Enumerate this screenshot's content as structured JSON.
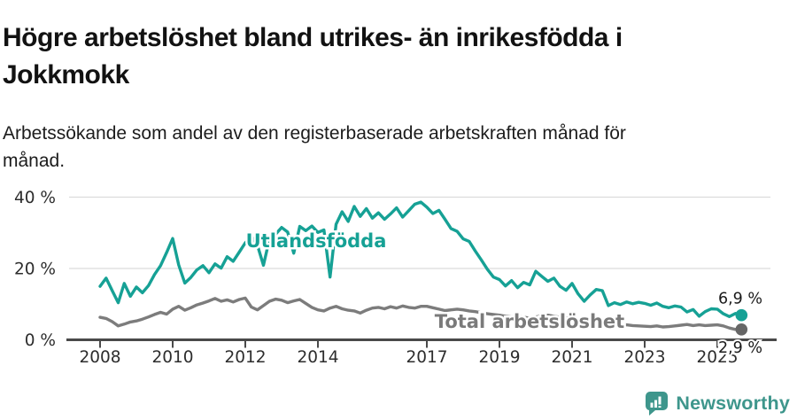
{
  "header": {
    "title": "Högre arbetslöshet bland utrikes- än inrikesfödda i Jokkmokk",
    "subtitle": "Arbetssökande som andel av den registerbaserade arbetskraften månad för månad."
  },
  "footer": {
    "brand": "Newsworthy",
    "icon": "bar-chart-speech-bubble-icon"
  },
  "colors": {
    "teal": "#16A195",
    "gray": "#7C7C7C",
    "gray_dot": "#666666",
    "gray_label": "#7A7A7A",
    "axis": "#4A4A4A",
    "grid": "#DCDCDC",
    "tick_text": "#2D2D2D",
    "value_text": "#1B1B1B",
    "brand": "#3E968C"
  },
  "chart_data": {
    "type": "line",
    "title": "Högre arbetslöshet bland utrikes- än inrikesfödda i Jokkmokk",
    "subtitle": "Arbetssökande som andel av den registerbaserade arbetskraften månad för månad.",
    "x_unit": "year (monthly share of registered labour force, sampled every 2 months)",
    "x_start_year": 2008,
    "x_end_year": 2025.67,
    "points_per_year": 6,
    "xlim": [
      2007.1,
      2026.6
    ],
    "ylim": [
      0,
      42
    ],
    "grid": true,
    "legend": "inline-labels",
    "xticks": [
      2008,
      2010,
      2012,
      2014,
      2017,
      2019,
      2021,
      2023,
      2025
    ],
    "ytick_values": [
      0,
      20,
      40
    ],
    "ytick_labels": [
      "0 %",
      "20 %",
      "40 %"
    ],
    "series": [
      {
        "name": "Utlandsfödda",
        "color": "#16A195",
        "end_label": "6,9 %",
        "values": [
          15.0,
          17.3,
          13.8,
          10.4,
          15.8,
          12.2,
          14.8,
          13.2,
          15.2,
          18.3,
          20.8,
          24.5,
          28.4,
          21.0,
          15.9,
          17.5,
          19.6,
          20.8,
          18.8,
          21.3,
          20.1,
          23.3,
          22.0,
          24.6,
          27.2,
          29.0,
          26.5,
          20.9,
          28.3,
          29.6,
          31.5,
          30.2,
          24.3,
          31.8,
          30.6,
          31.9,
          30.1,
          30.8,
          17.6,
          32.4,
          35.9,
          33.2,
          37.4,
          34.6,
          36.8,
          34.1,
          35.6,
          33.8,
          35.3,
          37.0,
          34.4,
          36.2,
          38.0,
          38.6,
          37.2,
          35.4,
          36.3,
          33.8,
          31.2,
          30.4,
          28.3,
          27.6,
          24.9,
          22.4,
          19.8,
          17.6,
          16.9,
          15.1,
          16.6,
          14.6,
          16.1,
          15.4,
          19.2,
          17.8,
          16.4,
          17.3,
          15.0,
          13.9,
          15.8,
          12.9,
          10.8,
          12.6,
          14.1,
          13.8,
          9.6,
          10.4,
          9.9,
          10.6,
          10.1,
          10.5,
          10.2,
          9.7,
          10.3,
          9.4,
          9.0,
          9.5,
          9.2,
          7.8,
          8.5,
          6.6,
          7.9,
          8.7,
          8.6,
          7.3,
          6.5,
          7.4,
          6.9
        ]
      },
      {
        "name": "Total arbetslöshet",
        "color": "#7C7C7C",
        "label_color": "#7A7A7A",
        "dot_color": "#666666",
        "end_label": "2,9 %",
        "values": [
          6.3,
          6.0,
          5.1,
          3.9,
          4.4,
          5.0,
          5.3,
          5.8,
          6.4,
          7.1,
          7.7,
          7.2,
          8.6,
          9.4,
          8.3,
          9.0,
          9.8,
          10.3,
          10.9,
          11.6,
          10.8,
          11.2,
          10.6,
          11.3,
          11.7,
          9.2,
          8.4,
          9.6,
          10.8,
          11.4,
          11.1,
          10.4,
          10.9,
          11.3,
          10.2,
          9.1,
          8.4,
          8.1,
          8.9,
          9.4,
          8.7,
          8.3,
          8.1,
          7.5,
          8.3,
          8.9,
          9.1,
          8.7,
          9.3,
          8.9,
          9.5,
          9.1,
          8.9,
          9.4,
          9.4,
          9.0,
          8.6,
          8.2,
          8.4,
          8.6,
          8.4,
          8.1,
          7.9,
          7.6,
          7.3,
          7.1,
          6.9,
          6.6,
          6.4,
          6.6,
          6.3,
          6.1,
          6.4,
          6.7,
          6.9,
          6.6,
          6.3,
          6.1,
          5.9,
          5.6,
          5.4,
          5.3,
          5.1,
          5.0,
          4.6,
          4.3,
          4.1,
          4.2,
          4.0,
          3.9,
          3.8,
          3.7,
          3.9,
          3.6,
          3.7,
          3.9,
          4.1,
          4.3,
          4.0,
          4.2,
          4.0,
          4.1,
          4.2,
          3.9,
          3.3,
          2.9,
          2.9
        ]
      }
    ]
  }
}
